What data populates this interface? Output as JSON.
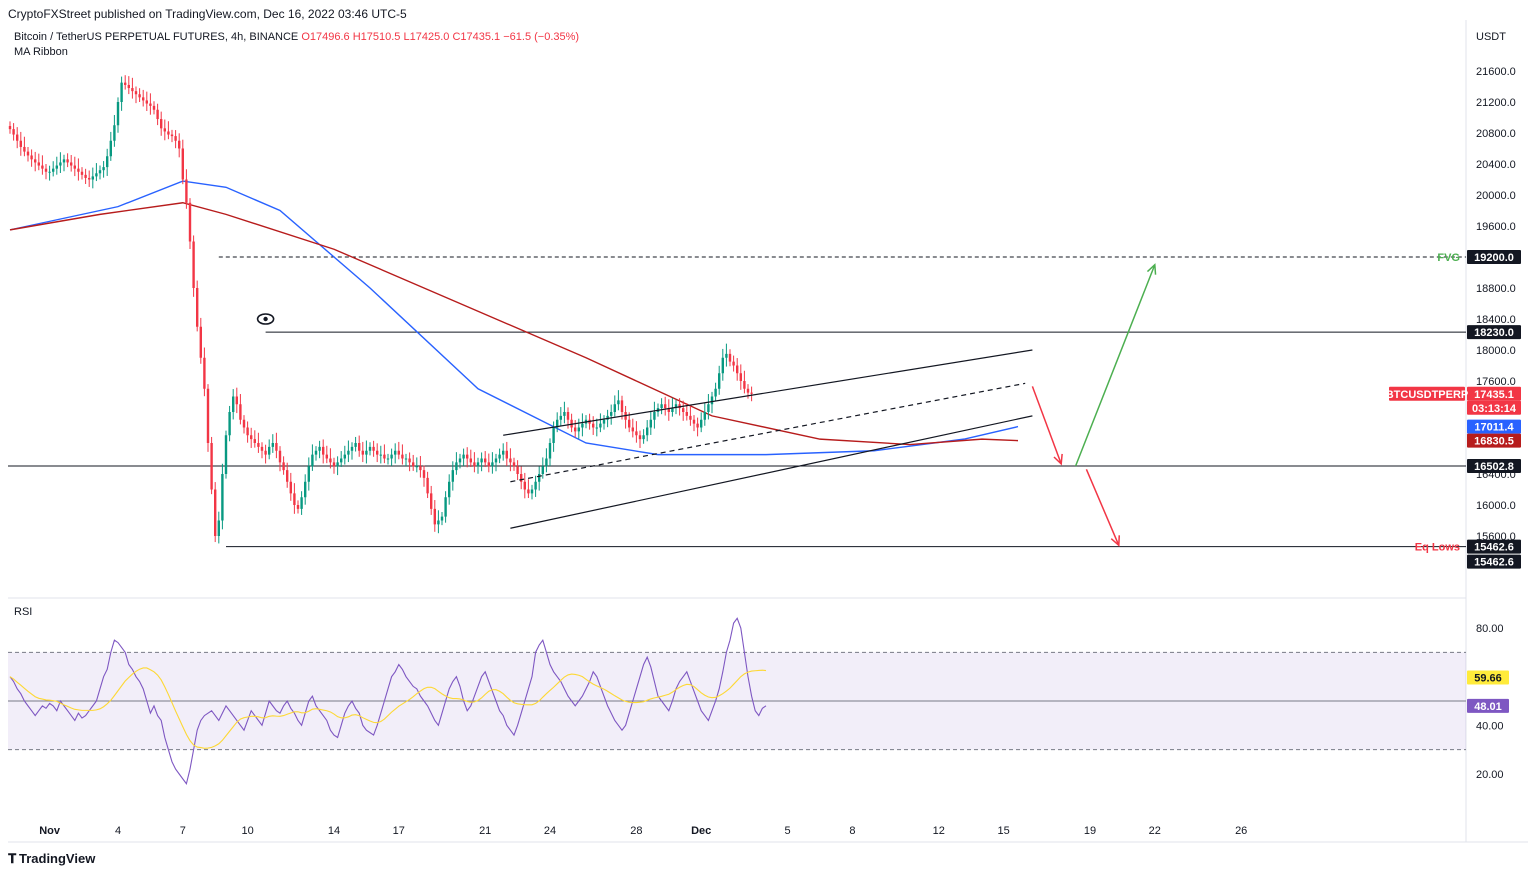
{
  "header": {
    "published": "CryptoFXStreet published on TradingView.com, Dec 16, 2022 03:46 UTC-5"
  },
  "symbol": {
    "name": "Bitcoin / TetherUS PERPETUAL FUTURES, 4h, BINANCE",
    "open": "O17496.6",
    "high": "H17510.5",
    "low": "L17425.0",
    "close": "C17435.1",
    "change": "−61.5 (−0.35%)"
  },
  "indicator": "MA Ribbon",
  "rsi_title": "RSI",
  "logo": "TradingView",
  "chart_data": {
    "type": "candlestick",
    "currency_label": "USDT",
    "price_ticks": [
      "21600.0",
      "21200.0",
      "20800.0",
      "20400.0",
      "20000.0",
      "19600.0",
      "18800.0",
      "18400.0",
      "18000.0",
      "17600.0",
      "16400.0",
      "16000.0",
      "15600.0"
    ],
    "price_tick_values": [
      21600,
      21200,
      20800,
      20400,
      20000,
      19600,
      18800,
      18400,
      18000,
      17600,
      16400,
      16000,
      15600
    ],
    "rsi_ticks": [
      "80.00",
      "40.00",
      "20.00"
    ],
    "rsi_tick_values": [
      80,
      40,
      20
    ],
    "x_ticks": [
      {
        "label": "Nov",
        "bar": 11
      },
      {
        "label": "4",
        "bar": 30
      },
      {
        "label": "7",
        "bar": 48
      },
      {
        "label": "10",
        "bar": 66
      },
      {
        "label": "14",
        "bar": 90
      },
      {
        "label": "17",
        "bar": 108
      },
      {
        "label": "21",
        "bar": 132
      },
      {
        "label": "24",
        "bar": 150
      },
      {
        "label": "28",
        "bar": 174
      },
      {
        "label": "Dec",
        "bar": 192
      },
      {
        "label": "5",
        "bar": 216
      },
      {
        "label": "8",
        "bar": 234
      },
      {
        "label": "12",
        "bar": 258
      },
      {
        "label": "15",
        "bar": 276
      },
      {
        "label": "19",
        "bar": 300
      },
      {
        "label": "22",
        "bar": 318
      },
      {
        "label": "26",
        "bar": 342
      }
    ],
    "levels": [
      {
        "value": 19200,
        "text": "FVG",
        "badge": "19200.0",
        "style": "dashed",
        "color": "#4caf50",
        "from_bar": 58
      },
      {
        "value": 18230,
        "text": "",
        "badge": "18230.0",
        "style": "solid",
        "color": "#131722",
        "from_bar": 71
      },
      {
        "value": 16502.8,
        "text": "",
        "badge": "16502.8",
        "style": "solid",
        "color": "#131722",
        "from_bar": 0
      },
      {
        "value": 15462.6,
        "text": "Eq Lows",
        "badge": "15462.6",
        "style": "solid",
        "color": "#131722",
        "from_bar": 60
      }
    ],
    "labels": [
      {
        "text": "17435.1",
        "value": 17435.1,
        "bg": "#f23645"
      },
      {
        "text": "03:13:14",
        "value": 17435.1,
        "bg": "#f23645",
        "sub": true
      },
      {
        "text": "BTCUSDTPERP",
        "value": 17435.1,
        "bg": "#f23645",
        "side": "left"
      },
      {
        "text": "17011.4",
        "value": 17011.4,
        "bg": "#2962ff"
      },
      {
        "text": "16830.5",
        "value": 16830.5,
        "bg": "#b71c1c"
      },
      {
        "text": "15462.6",
        "value": 15462.6,
        "bg": "#131722",
        "offset": 1
      }
    ],
    "rsi_labels": [
      {
        "text": "59.66",
        "value": 59.66,
        "bg": "#ffeb3b",
        "fg": "#131722"
      },
      {
        "text": "48.01",
        "value": 48.01,
        "bg": "#7e57c2",
        "fg": "#ffffff"
      }
    ],
    "rsi_band": [
      30,
      70
    ],
    "rsi_mid": 50,
    "channel": {
      "upper": [
        [
          137,
          16900
        ],
        [
          284,
          18000
        ]
      ],
      "lower": [
        [
          139,
          15700
        ],
        [
          284,
          17150
        ]
      ],
      "mid": [
        [
          139,
          16300
        ],
        [
          282,
          17570
        ]
      ]
    },
    "arrows": [
      {
        "from": [
          284,
          17530
        ],
        "to": [
          292,
          16530
        ],
        "color": "#f23645"
      },
      {
        "from": [
          296,
          16502.8
        ],
        "to": [
          318,
          19100
        ],
        "color": "#4caf50"
      },
      {
        "from": [
          299,
          16460
        ],
        "to": [
          308,
          15480
        ],
        "color": "#f23645"
      }
    ],
    "eye_marker": {
      "bar": 71,
      "value": 18400
    },
    "ma_fast": [
      [
        0,
        19550
      ],
      [
        30,
        19850
      ],
      [
        48,
        20180
      ],
      [
        60,
        20100
      ],
      [
        75,
        19800
      ],
      [
        100,
        18800
      ],
      [
        130,
        17500
      ],
      [
        160,
        16800
      ],
      [
        180,
        16650
      ],
      [
        210,
        16650
      ],
      [
        240,
        16700
      ],
      [
        265,
        16850
      ],
      [
        280,
        17011.4
      ]
    ],
    "ma_slow": [
      [
        0,
        19550
      ],
      [
        25,
        19750
      ],
      [
        48,
        19900
      ],
      [
        60,
        19750
      ],
      [
        90,
        19300
      ],
      [
        125,
        18600
      ],
      [
        160,
        17900
      ],
      [
        195,
        17150
      ],
      [
        225,
        16850
      ],
      [
        250,
        16780
      ],
      [
        270,
        16850
      ],
      [
        280,
        16830.5
      ]
    ],
    "price_closes": [
      20850,
      20780,
      20700,
      20620,
      20560,
      20510,
      20460,
      20420,
      20380,
      20340,
      20300,
      20300,
      20340,
      20380,
      20420,
      20460,
      20420,
      20380,
      20340,
      20300,
      20260,
      20220,
      20200,
      20240,
      20280,
      20320,
      20360,
      20500,
      20700,
      20900,
      21200,
      21450,
      21420,
      21380,
      21340,
      21300,
      21260,
      21220,
      21180,
      21150,
      21100,
      20980,
      20860,
      20820,
      20780,
      20760,
      20700,
      20600,
      20200,
      19900,
      19400,
      18800,
      18300,
      17900,
      17500,
      16800,
      16200,
      15600,
      15800,
      16400,
      16900,
      17200,
      17400,
      17300,
      17100,
      17000,
      16900,
      16850,
      16800,
      16750,
      16700,
      16650,
      16750,
      16800,
      16700,
      16550,
      16450,
      16300,
      16150,
      16000,
      15950,
      16100,
      16300,
      16500,
      16650,
      16700,
      16750,
      16650,
      16600,
      16550,
      16500,
      16550,
      16600,
      16650,
      16700,
      16750,
      16800,
      16700,
      16650,
      16700,
      16750,
      16700,
      16650,
      16650,
      16600,
      16600,
      16650,
      16700,
      16650,
      16600,
      16600,
      16550,
      16500,
      16500,
      16450,
      16350,
      16150,
      15950,
      15750,
      15800,
      15850,
      16100,
      16300,
      16450,
      16550,
      16600,
      16650,
      16600,
      16550,
      16500,
      16550,
      16600,
      16550,
      16500,
      16550,
      16600,
      16650,
      16700,
      16600,
      16550,
      16500,
      16400,
      16300,
      16200,
      16150,
      16200,
      16300,
      16400,
      16500,
      16600,
      16800,
      17000,
      17100,
      17150,
      17200,
      17100,
      17000,
      16950,
      17000,
      17050,
      17100,
      17050,
      17000,
      17000,
      17050,
      17100,
      17150,
      17200,
      17300,
      17350,
      17200,
      17100,
      17000,
      16950,
      16900,
      16850,
      16900,
      17000,
      17100,
      17200,
      17250,
      17300,
      17250,
      17200,
      17250,
      17300,
      17250,
      17200,
      17150,
      17100,
      17050,
      17000,
      17100,
      17200,
      17300,
      17400,
      17500,
      17700,
      17900,
      17950,
      17850,
      17800,
      17700,
      17600,
      17500,
      17450,
      17435.1
    ],
    "rsi_values": [
      60,
      58,
      55,
      53,
      50,
      48,
      46,
      44,
      46,
      48,
      47,
      49,
      48,
      46,
      50,
      48,
      46,
      44,
      42,
      45,
      43,
      44,
      46,
      48,
      50,
      55,
      60,
      63,
      70,
      75,
      74,
      72,
      70,
      65,
      63,
      60,
      58,
      55,
      50,
      45,
      48,
      44,
      42,
      35,
      30,
      25,
      22,
      20,
      18,
      16,
      22,
      30,
      38,
      42,
      44,
      45,
      46,
      44,
      42,
      45,
      48,
      46,
      44,
      42,
      40,
      38,
      42,
      46,
      44,
      42,
      40,
      45,
      50,
      48,
      46,
      45,
      48,
      50,
      47,
      45,
      42,
      40,
      45,
      50,
      52,
      48,
      46,
      44,
      42,
      38,
      36,
      35,
      40,
      45,
      48,
      50,
      47,
      45,
      40,
      38,
      37,
      36,
      40,
      45,
      50,
      55,
      60,
      62,
      65,
      63,
      60,
      58,
      56,
      55,
      52,
      50,
      48,
      45,
      42,
      40,
      45,
      50,
      55,
      58,
      60,
      56,
      50,
      46,
      48,
      52,
      56,
      60,
      62,
      58,
      54,
      50,
      46,
      44,
      40,
      38,
      36,
      40,
      45,
      50,
      55,
      60,
      70,
      73,
      75,
      70,
      65,
      62,
      60,
      58,
      55,
      52,
      50,
      48,
      50,
      52,
      55,
      58,
      62,
      60,
      56,
      52,
      48,
      45,
      42,
      40,
      38,
      40,
      45,
      50,
      55,
      60,
      65,
      68,
      64,
      58,
      52,
      50,
      48,
      46,
      50,
      55,
      58,
      60,
      62,
      58,
      54,
      50,
      46,
      44,
      42,
      46,
      50,
      55,
      62,
      70,
      75,
      82,
      84,
      80,
      70,
      60,
      52,
      46,
      44,
      47,
      48.01
    ]
  }
}
